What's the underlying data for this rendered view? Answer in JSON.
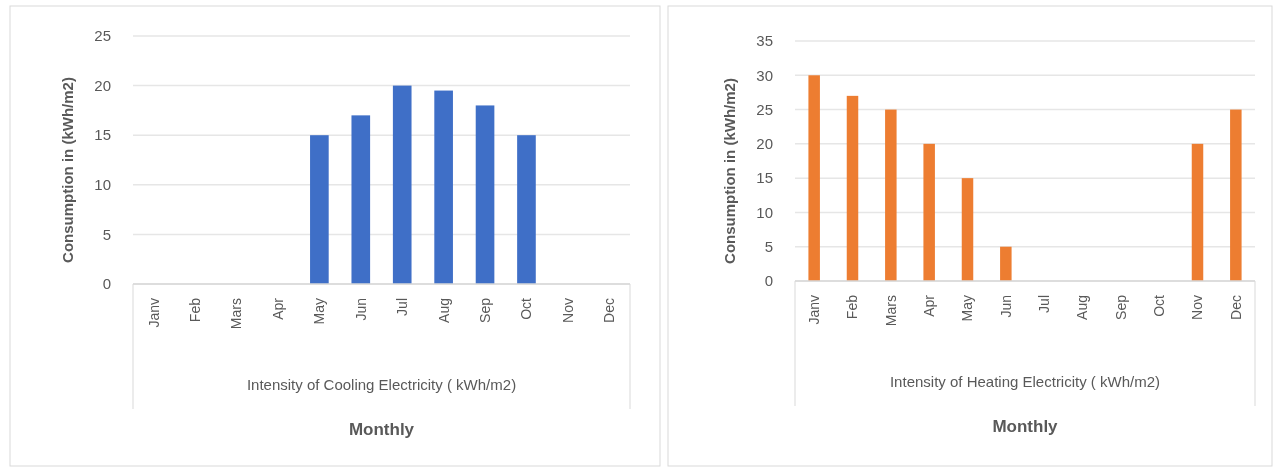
{
  "chart_data": [
    {
      "type": "bar",
      "ylabel": "Consumption in (kWh/m2)",
      "xlabel": "Monthly",
      "categories": [
        "Janv",
        "Feb",
        "Mars",
        "Apr",
        "May",
        "Jun",
        "Jul",
        "Aug",
        "Sep",
        "Oct",
        "Nov",
        "Dec"
      ],
      "values": [
        0,
        0,
        0,
        0,
        15,
        17,
        20,
        19.5,
        18,
        15,
        0,
        0
      ],
      "color": "#3f6fc7",
      "ylim": [
        0,
        25
      ],
      "yticks": [
        0,
        5,
        10,
        15,
        20,
        25
      ],
      "grid": "y",
      "annotations": [
        "Intensity of Cooling Electricity ( kWh/m2)"
      ]
    },
    {
      "type": "bar",
      "ylabel": "Consumption in (kWh/m2)",
      "xlabel": "Monthly",
      "categories": [
        "Janv",
        "Feb",
        "Mars",
        "Apr",
        "May",
        "Jun",
        "Jul",
        "Aug",
        "Sep",
        "Oct",
        "Nov",
        "Dec"
      ],
      "values": [
        30,
        27,
        25,
        20,
        15,
        5,
        0,
        0,
        0,
        0,
        20,
        25
      ],
      "color": "#ed7d31",
      "ylim": [
        0,
        35
      ],
      "yticks": [
        0,
        5,
        10,
        15,
        20,
        25,
        30,
        35
      ],
      "grid": "y",
      "annotations": [
        "Intensity of Heating Electricity ( kWh/m2)"
      ]
    }
  ]
}
